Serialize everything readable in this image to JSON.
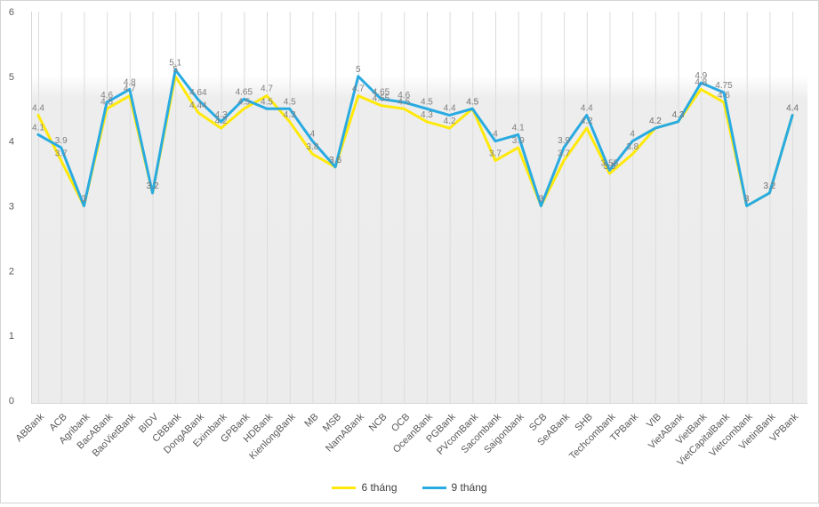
{
  "chart_data": {
    "type": "line",
    "title": "",
    "xlabel": "",
    "ylabel": "",
    "ylim": [
      0,
      6
    ],
    "y_ticks": [
      "0",
      "1",
      "2",
      "3",
      "4",
      "5",
      "6"
    ],
    "grid": "vertical-only",
    "legend_position": "bottom-center",
    "show_data_labels": true,
    "categories": [
      "ABBank",
      "ACB",
      "Agribank",
      "BacABank",
      "BaoVietBank",
      "BIDV",
      "CBBank",
      "DongABank",
      "Eximbank",
      "GPBank",
      "HDBank",
      "KienlongBank",
      "MB",
      "MSB",
      "NamABank",
      "NCB",
      "OCB",
      "OceanBank",
      "PGBank",
      "PVcomBank",
      "Sacombank",
      "Saigonbank",
      "SCB",
      "SeABank",
      "SHB",
      "Techcombank",
      "TPBank",
      "VIB",
      "VietABank",
      "VietBank",
      "VietCapitalBank",
      "Vietcombank",
      "VietinBank",
      "VPBank"
    ],
    "series": [
      {
        "name": "6 tháng",
        "color": "#ffe90a",
        "values": [
          4.4,
          3.7,
          3,
          4.5,
          4.7,
          3.2,
          5,
          4.44,
          4.2,
          4.5,
          4.7,
          4.3,
          3.8,
          3.6,
          4.7,
          4.55,
          4.5,
          4.3,
          4.2,
          4.5,
          3.7,
          3.9,
          3,
          3.7,
          4.2,
          3.5,
          3.8,
          4.2,
          4.3,
          4.8,
          4.6,
          3,
          3.2,
          4.4
        ]
      },
      {
        "name": "9 tháng",
        "color": "#29abe2",
        "values": [
          4.1,
          3.9,
          3,
          4.6,
          4.8,
          3.2,
          5.1,
          4.64,
          4.3,
          4.65,
          4.5,
          4.5,
          4,
          3.6,
          5,
          4.65,
          4.6,
          4.5,
          4.4,
          4.5,
          4,
          4.1,
          3,
          3.9,
          4.4,
          3.55,
          4,
          4.2,
          4.3,
          4.9,
          4.75,
          3,
          3.2,
          4.4
        ]
      }
    ]
  },
  "colors": {
    "data_label": "#7f7f7f",
    "axis_text": "#595959",
    "gridline": "#dcdcdc",
    "axis_line": "#d6d6d6",
    "plot_fill": "#ececec"
  }
}
